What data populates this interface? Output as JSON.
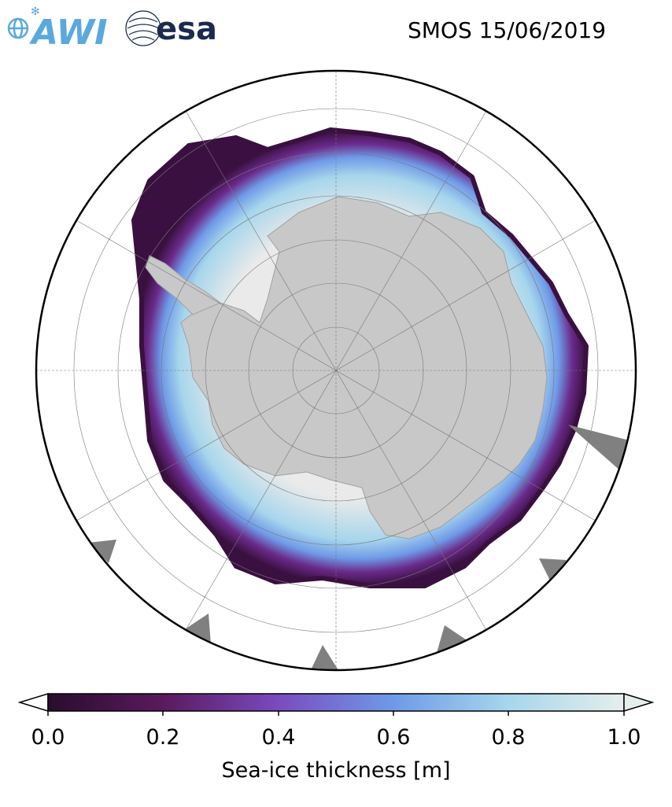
{
  "header": {
    "title": "SMOS 15/06/2019",
    "logos": [
      {
        "name": "awi-logo",
        "text": "AWI",
        "color": "#5aa9dd"
      },
      {
        "name": "esa-logo",
        "text": "esa",
        "color": "#1b2a4e"
      }
    ]
  },
  "map": {
    "projection": "south-polar-stereographic",
    "land_color": "#c8c8c8",
    "missing_data_color": "#808080",
    "ocean_color": "#ffffff",
    "graticule": "on"
  },
  "colorbar": {
    "label": "Sea-ice thickness [m]",
    "range": [
      0.0,
      1.0
    ],
    "extend": "both",
    "ticks": [
      "0.0",
      "0.2",
      "0.4",
      "0.6",
      "0.8",
      "1.0"
    ],
    "colors": [
      "#2a0c2e",
      "#5a1a5e",
      "#7a4bc0",
      "#6f9ae8",
      "#a7d6ec",
      "#e6eeec"
    ]
  }
}
